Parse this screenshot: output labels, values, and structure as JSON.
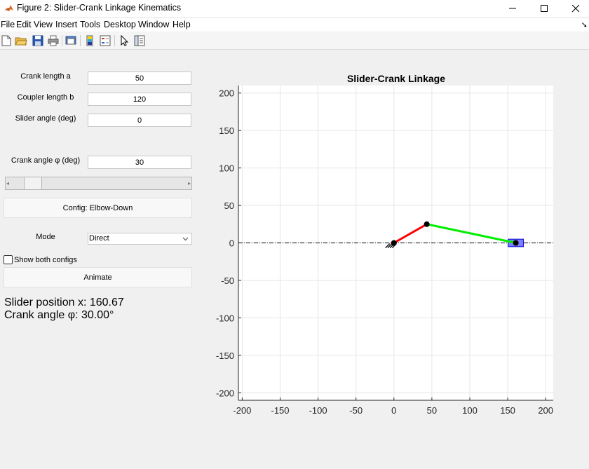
{
  "window": {
    "title": "Figure 2: Slider-Crank Linkage Kinematics",
    "controls": [
      "minimize-icon",
      "maximize-icon",
      "close-icon"
    ]
  },
  "menu": [
    "File",
    "Edit",
    "View",
    "Insert",
    "Tools",
    "Desktop",
    "Window",
    "Help"
  ],
  "toolbar": [
    "new-figure-icon",
    "open-folder-icon",
    "save-icon",
    "print-icon",
    "print-preview-icon",
    "colorbar-icon",
    "legend-icon",
    "pointer-icon",
    "property-inspector-icon"
  ],
  "controls": {
    "crank_label": "Crank length a",
    "crank_value": "50",
    "coupler_label": "Coupler length b",
    "coupler_value": "120",
    "slider_angle_label": "Slider angle (deg)",
    "slider_angle_value": "0",
    "crank_angle_label": "Crank angle φ (deg)",
    "crank_angle_value": "30",
    "crank_slider_fraction": 0.083,
    "config_button": "Config: Elbow-Down",
    "mode_label": "Mode",
    "mode_value": "Direct",
    "show_both_label": "Show both configs",
    "show_both_checked": false,
    "animate_button": "Animate",
    "slider_position_text": "Slider position x: 160.67",
    "crank_angle_text": "Crank angle φ: 30.00°"
  },
  "plot": {
    "title": "Slider-Crank Linkage",
    "xlim": [
      -205,
      210
    ],
    "ylim": [
      -210,
      210
    ],
    "xticks": [
      -200,
      -150,
      -100,
      -50,
      0,
      50,
      100,
      150,
      200
    ],
    "yticks": [
      -200,
      -150,
      -100,
      -50,
      0,
      50,
      100,
      150,
      200
    ],
    "grid": true,
    "ground_pivot": [
      0,
      0
    ],
    "crank_joint": [
      43.3,
      25
    ],
    "slider_point": [
      160.67,
      0
    ],
    "slider_block_size": [
      20,
      10
    ],
    "colors": {
      "crank": "#ff0000",
      "coupler": "#00ee00",
      "slider_fill": "#7f7fff",
      "slider_edge": "#0000cc",
      "guide": "#000000",
      "joint": "#000000",
      "grid": "#e6e6e6",
      "axis": "#262626"
    }
  }
}
